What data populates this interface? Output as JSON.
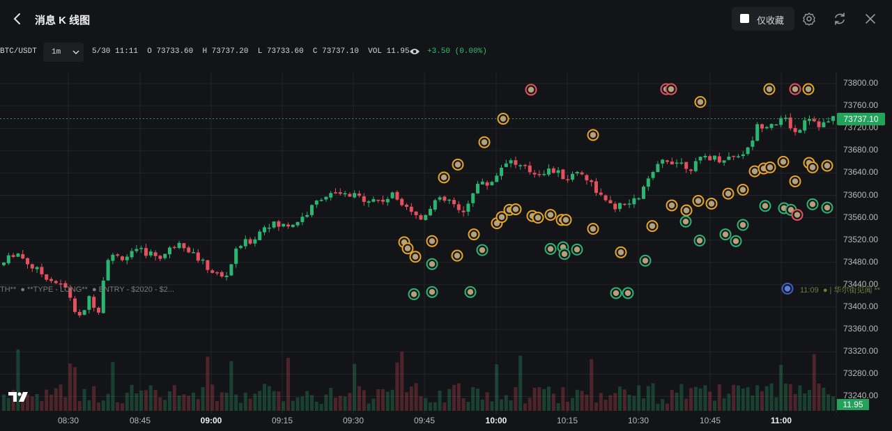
{
  "header": {
    "title": "消息 K 线图",
    "favorites_only_label": "仅收藏",
    "icons": [
      "back-icon",
      "settings-icon",
      "refresh-icon",
      "close-icon"
    ]
  },
  "infobar": {
    "symbol": "BTC/USDT",
    "timeframe": "1m",
    "datetime": "5/30 11:11",
    "open_label": "O",
    "open": "73733.60",
    "high_label": "H",
    "high": "73737.20",
    "low_label": "L",
    "low": "73733.60",
    "close_label": "C",
    "close": "73737.10",
    "vol_label": "VOL",
    "volume": "11.95",
    "change": "+3.50 (0.00%)"
  },
  "colors": {
    "up": "#2bb573",
    "down": "#e5505e",
    "accent": "#22a25a",
    "background": "#131417",
    "grid": "#23252a",
    "marker_orange": "#e8a525",
    "marker_green": "#2bb573",
    "marker_red": "#e5505e"
  },
  "chart_data": {
    "type": "candlestick",
    "title": "",
    "ylim": [
      73200,
      73820
    ],
    "yticks": [
      "73800.00",
      "73760.00",
      "73720.00",
      "73680.00",
      "73640.00",
      "73600.00",
      "73560.00",
      "73520.00",
      "73480.00",
      "73440.00",
      "73400.00",
      "73360.00",
      "73320.00",
      "73280.00",
      "73240.00"
    ],
    "xticks": [
      {
        "label": "08:30",
        "bold": false
      },
      {
        "label": "08:45",
        "bold": false
      },
      {
        "label": "09:00",
        "bold": true
      },
      {
        "label": "09:15",
        "bold": false
      },
      {
        "label": "09:30",
        "bold": false
      },
      {
        "label": "09:45",
        "bold": false
      },
      {
        "label": "10:00",
        "bold": true
      },
      {
        "label": "10:15",
        "bold": false
      },
      {
        "label": "10:30",
        "bold": false
      },
      {
        "label": "10:45",
        "bold": false
      },
      {
        "label": "11:00",
        "bold": true
      }
    ],
    "last_price": "73737.10",
    "last_volume": "11.95",
    "price_path": [
      [
        0,
        73475
      ],
      [
        20,
        73500
      ],
      [
        45,
        73470
      ],
      [
        70,
        73450
      ],
      [
        95,
        73430
      ],
      [
        110,
        73375
      ],
      [
        125,
        73415
      ],
      [
        140,
        73395
      ],
      [
        150,
        73490
      ],
      [
        175,
        73490
      ],
      [
        200,
        73500
      ],
      [
        230,
        73490
      ],
      [
        255,
        73520
      ],
      [
        275,
        73495
      ],
      [
        300,
        73465
      ],
      [
        320,
        73450
      ],
      [
        340,
        73510
      ],
      [
        360,
        73520
      ],
      [
        380,
        73550
      ],
      [
        400,
        73545
      ],
      [
        420,
        73550
      ],
      [
        440,
        73570
      ],
      [
        460,
        73600
      ],
      [
        490,
        73600
      ],
      [
        520,
        73595
      ],
      [
        545,
        73590
      ],
      [
        560,
        73600
      ],
      [
        580,
        73585
      ],
      [
        600,
        73555
      ],
      [
        620,
        73590
      ],
      [
        645,
        73590
      ],
      [
        660,
        73560
      ],
      [
        680,
        73620
      ],
      [
        700,
        73620
      ],
      [
        725,
        73665
      ],
      [
        745,
        73650
      ],
      [
        765,
        73640
      ],
      [
        790,
        73645
      ],
      [
        810,
        73630
      ],
      [
        830,
        73645
      ],
      [
        850,
        73615
      ],
      [
        870,
        73580
      ],
      [
        890,
        73580
      ],
      [
        910,
        73590
      ],
      [
        930,
        73630
      ],
      [
        950,
        73665
      ],
      [
        970,
        73660
      ],
      [
        990,
        73650
      ],
      [
        1010,
        73670
      ],
      [
        1030,
        73665
      ],
      [
        1050,
        73670
      ],
      [
        1070,
        73680
      ],
      [
        1085,
        73725
      ],
      [
        1105,
        73730
      ],
      [
        1125,
        73735
      ],
      [
        1140,
        73710
      ],
      [
        1155,
        73745
      ],
      [
        1175,
        73725
      ],
      [
        1195,
        73737
      ]
    ],
    "volume_note": "volume bars along bottom"
  },
  "overlay": {
    "left_text": "TH**  ● **TYPE - LONG**  ● ENTRY - $2020 - $2...",
    "right_time": "11:09",
    "right_text": "● | 华尔街见闻 **"
  },
  "markers": [
    {
      "t": 580,
      "p": 73516,
      "c": "orange"
    },
    {
      "t": 585,
      "p": 73505,
      "c": "orange"
    },
    {
      "t": 596,
      "p": 73490,
      "c": "orange"
    },
    {
      "t": 620,
      "p": 73518,
      "c": "orange"
    },
    {
      "t": 637,
      "p": 73632,
      "c": "orange"
    },
    {
      "t": 657,
      "p": 73655,
      "c": "orange"
    },
    {
      "t": 656,
      "p": 73492,
      "c": "orange"
    },
    {
      "t": 680,
      "p": 73530,
      "c": "orange"
    },
    {
      "t": 695,
      "p": 73695,
      "c": "orange"
    },
    {
      "t": 722,
      "p": 73737,
      "c": "orange"
    },
    {
      "t": 713,
      "p": 73550,
      "c": "orange"
    },
    {
      "t": 720,
      "p": 73561,
      "c": "orange"
    },
    {
      "t": 731,
      "p": 73574,
      "c": "orange"
    },
    {
      "t": 740,
      "p": 73575,
      "c": "orange"
    },
    {
      "t": 762,
      "p": 73789,
      "c": "red"
    },
    {
      "t": 764,
      "p": 73563,
      "c": "orange"
    },
    {
      "t": 772,
      "p": 73560,
      "c": "orange"
    },
    {
      "t": 790,
      "p": 73565,
      "c": "orange"
    },
    {
      "t": 806,
      "p": 73556,
      "c": "orange"
    },
    {
      "t": 812,
      "p": 73556,
      "c": "orange"
    },
    {
      "t": 851,
      "p": 73708,
      "c": "orange"
    },
    {
      "t": 851,
      "p": 73540,
      "c": "orange"
    },
    {
      "t": 891,
      "p": 73498,
      "c": "orange"
    },
    {
      "t": 936,
      "p": 73545,
      "c": "orange"
    },
    {
      "t": 956,
      "p": 73790,
      "c": "red"
    },
    {
      "t": 963,
      "p": 73790,
      "c": "red"
    },
    {
      "t": 964,
      "p": 73582,
      "c": "orange"
    },
    {
      "t": 985,
      "p": 73573,
      "c": "orange"
    },
    {
      "t": 1002,
      "p": 73590,
      "c": "orange"
    },
    {
      "t": 1005,
      "p": 73767,
      "c": "orange"
    },
    {
      "t": 1021,
      "p": 73585,
      "c": "orange"
    },
    {
      "t": 1045,
      "p": 73603,
      "c": "orange"
    },
    {
      "t": 1066,
      "p": 73610,
      "c": "orange"
    },
    {
      "t": 1083,
      "p": 73643,
      "c": "orange"
    },
    {
      "t": 1096,
      "p": 73648,
      "c": "orange"
    },
    {
      "t": 1105,
      "p": 73650,
      "c": "orange"
    },
    {
      "t": 1104,
      "p": 73790,
      "c": "orange"
    },
    {
      "t": 1124,
      "p": 73660,
      "c": "orange"
    },
    {
      "t": 1141,
      "p": 73790,
      "c": "red"
    },
    {
      "t": 1141,
      "p": 73625,
      "c": "orange"
    },
    {
      "t": 1160,
      "p": 73790,
      "c": "orange"
    },
    {
      "t": 1161,
      "p": 73658,
      "c": "orange"
    },
    {
      "t": 1166,
      "p": 73650,
      "c": "orange"
    },
    {
      "t": 1187,
      "p": 73653,
      "c": "orange"
    },
    {
      "t": 594,
      "p": 73423,
      "c": "green"
    },
    {
      "t": 620,
      "p": 73427,
      "c": "green"
    },
    {
      "t": 620,
      "p": 73477,
      "c": "green"
    },
    {
      "t": 675,
      "p": 73427,
      "c": "green"
    },
    {
      "t": 692,
      "p": 73502,
      "c": "green"
    },
    {
      "t": 790,
      "p": 73504,
      "c": "green"
    },
    {
      "t": 808,
      "p": 73507,
      "c": "green"
    },
    {
      "t": 810,
      "p": 73495,
      "c": "green"
    },
    {
      "t": 828,
      "p": 73503,
      "c": "green"
    },
    {
      "t": 884,
      "p": 73425,
      "c": "green"
    },
    {
      "t": 901,
      "p": 73425,
      "c": "green"
    },
    {
      "t": 926,
      "p": 73483,
      "c": "green"
    },
    {
      "t": 984,
      "p": 73553,
      "c": "green"
    },
    {
      "t": 1004,
      "p": 73519,
      "c": "green"
    },
    {
      "t": 1041,
      "p": 73530,
      "c": "green"
    },
    {
      "t": 1056,
      "p": 73518,
      "c": "green"
    },
    {
      "t": 1066,
      "p": 73547,
      "c": "green"
    },
    {
      "t": 1098,
      "p": 73581,
      "c": "green"
    },
    {
      "t": 1125,
      "p": 73577,
      "c": "green"
    },
    {
      "t": 1135,
      "p": 73574,
      "c": "green"
    },
    {
      "t": 1144,
      "p": 73565,
      "c": "red"
    },
    {
      "t": 1166,
      "p": 73584,
      "c": "green"
    },
    {
      "t": 1187,
      "p": 73578,
      "c": "green"
    },
    {
      "t": 1130,
      "p": 73433,
      "c": "blue"
    }
  ]
}
